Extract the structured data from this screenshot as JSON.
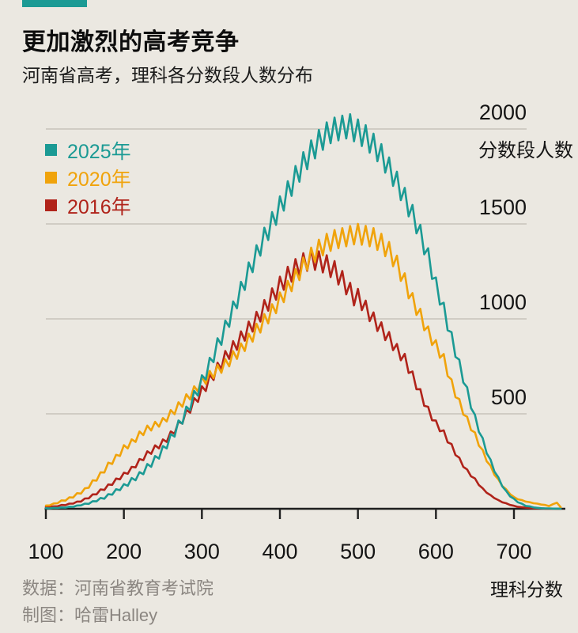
{
  "header": {
    "title": "更加激烈的高考竞争",
    "subtitle": "河南省高考，理科各分数段人数分布"
  },
  "axes": {
    "y_title": "分数段人数",
    "x_title": "理科分数"
  },
  "footer": {
    "source": "数据：河南省教育考试院",
    "credit": "制图：哈雷Halley"
  },
  "colors": {
    "background": "#ebe8e1",
    "tab": "#1b9a94",
    "gridline": "#c7c3ba",
    "axis": "#1f1f1f"
  },
  "chart_data": {
    "type": "line",
    "title": "更加激烈的高考竞争",
    "subtitle": "河南省高考，理科各分数段人数分布",
    "xlabel": "理科分数",
    "ylabel": "分数段人数",
    "grid": true,
    "legend_position": "top-left",
    "xlim": [
      100,
      765
    ],
    "ylim": [
      0,
      2100
    ],
    "x_ticks": [
      100,
      200,
      300,
      400,
      500,
      600,
      700
    ],
    "y_gridlines": [
      500,
      1000,
      1500,
      2000
    ],
    "x_start": 100,
    "x_step": 5,
    "series": [
      {
        "name": "2025年",
        "color": "#1b9a94",
        "values": [
          3,
          2,
          5,
          4,
          7,
          6,
          11,
          10,
          17,
          18,
          27,
          26,
          40,
          39,
          57,
          53,
          77,
          74,
          103,
          98,
          130,
          121,
          162,
          150,
          193,
          182,
          236,
          221,
          278,
          264,
          330,
          318,
          393,
          380,
          465,
          448,
          538,
          519,
          621,
          596,
          703,
          680,
          795,
          772,
          898,
          863,
          991,
          958,
          1092,
          1056,
          1195,
          1152,
          1297,
          1246,
          1388,
          1333,
          1480,
          1415,
          1562,
          1495,
          1645,
          1570,
          1725,
          1648,
          1805,
          1722,
          1878,
          1788,
          1940,
          1845,
          1995,
          1890,
          2035,
          1925,
          2060,
          1940,
          2070,
          1950,
          2078,
          1935,
          2050,
          1910,
          2020,
          1875,
          1975,
          1830,
          1920,
          1770,
          1850,
          1700,
          1775,
          1625,
          1690,
          1540,
          1600,
          1450,
          1495,
          1340,
          1372,
          1210,
          1218,
          1075,
          1085,
          940,
          930,
          800,
          785,
          665,
          640,
          530,
          495,
          405,
          372,
          292,
          259,
          196,
          166,
          118,
          94,
          65,
          53,
          34,
          27,
          15,
          13,
          7,
          5,
          3,
          2,
          2,
          1,
          1,
          0
        ]
      },
      {
        "name": "2020年",
        "color": "#f0a30b",
        "values": [
          17,
          18,
          28,
          29,
          44,
          43,
          60,
          59,
          82,
          80,
          108,
          111,
          150,
          148,
          192,
          191,
          243,
          236,
          284,
          278,
          335,
          318,
          366,
          352,
          407,
          388,
          438,
          412,
          458,
          432,
          478,
          460,
          520,
          498,
          561,
          537,
          603,
          576,
          645,
          618,
          695,
          658,
          726,
          688,
          757,
          716,
          788,
          750,
          830,
          789,
          871,
          831,
          922,
          880,
          974,
          928,
          1025,
          976,
          1077,
          1030,
          1139,
          1088,
          1200,
          1146,
          1262,
          1204,
          1323,
          1257,
          1375,
          1300,
          1417,
          1334,
          1448,
          1358,
          1468,
          1372,
          1478,
          1382,
          1489,
          1392,
          1500,
          1390,
          1490,
          1382,
          1478,
          1363,
          1448,
          1330,
          1405,
          1277,
          1333,
          1200,
          1240,
          1108,
          1136,
          1021,
          1053,
          940,
          960,
          862,
          888,
          795,
          815,
          699,
          681,
          588,
          578,
          496,
          485,
          414,
          402,
          332,
          310,
          250,
          227,
          178,
          155,
          120,
          103,
          77,
          62,
          50,
          46,
          38,
          35,
          29,
          27,
          22,
          20,
          14,
          24,
          32,
          8
        ]
      },
      {
        "name": "2016年",
        "color": "#b0231a",
        "values": [
          9,
          9,
          13,
          13,
          20,
          19,
          27,
          27,
          38,
          38,
          54,
          55,
          76,
          76,
          102,
          99,
          128,
          126,
          159,
          155,
          190,
          184,
          221,
          218,
          262,
          256,
          303,
          289,
          334,
          318,
          365,
          352,
          407,
          395,
          459,
          448,
          521,
          506,
          583,
          563,
          645,
          620,
          707,
          678,
          769,
          736,
          831,
          789,
          883,
          837,
          934,
          885,
          986,
          933,
          1037,
          986,
          1099,
          1043,
          1161,
          1101,
          1222,
          1153,
          1274,
          1196,
          1315,
          1229,
          1346,
          1253,
          1366,
          1258,
          1356,
          1244,
          1335,
          1220,
          1304,
          1181,
          1252,
          1129,
          1190,
          1071,
          1158,
          1046,
          1096,
          988,
          1034,
          936,
          982,
          888,
          931,
          835,
          868,
          782,
          816,
          715,
          723,
          629,
          630,
          542,
          537,
          466,
          465,
          408,
          413,
          350,
          341,
          283,
          269,
          221,
          207,
          171,
          160,
          125,
          108,
          84,
          72,
          56,
          46,
          34,
          29,
          20,
          16,
          10,
          8,
          6,
          4,
          3,
          2,
          2,
          1,
          1,
          1,
          0,
          0
        ]
      }
    ]
  }
}
